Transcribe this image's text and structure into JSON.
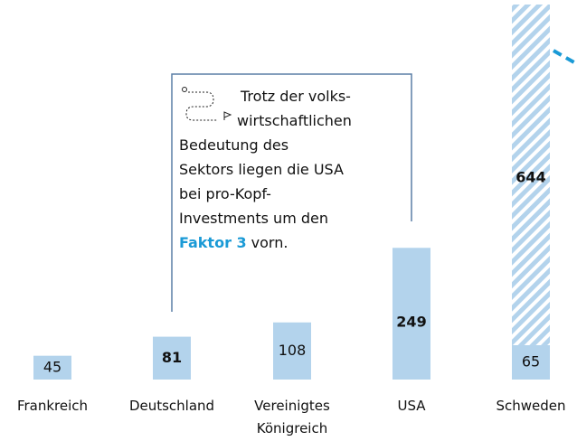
{
  "chart_data": {
    "type": "bar",
    "categories": [
      "Frankreich",
      "Deutschland",
      "Vereinigtes Königreich",
      "USA",
      "Schweden"
    ],
    "series": [
      {
        "color": "#b3d3ec",
        "values": [
          45,
          81,
          108,
          249,
          65
        ]
      },
      {
        "color": "#b3d3ec",
        "pattern": "hatched",
        "values": [
          null,
          null,
          null,
          null,
          644
        ]
      }
    ],
    "ylim": [
      0,
      709
    ],
    "annotation": {
      "lines": [
        "Trotz der volks-",
        "wirtschaftlichen",
        "Bedeutung des",
        "Sektors liegen die USA",
        "bei pro-Kopf-",
        "Investments um den"
      ],
      "highlight": "Faktor 3",
      "highlight_color": "#1a9ad6",
      "tail": "vorn."
    }
  }
}
